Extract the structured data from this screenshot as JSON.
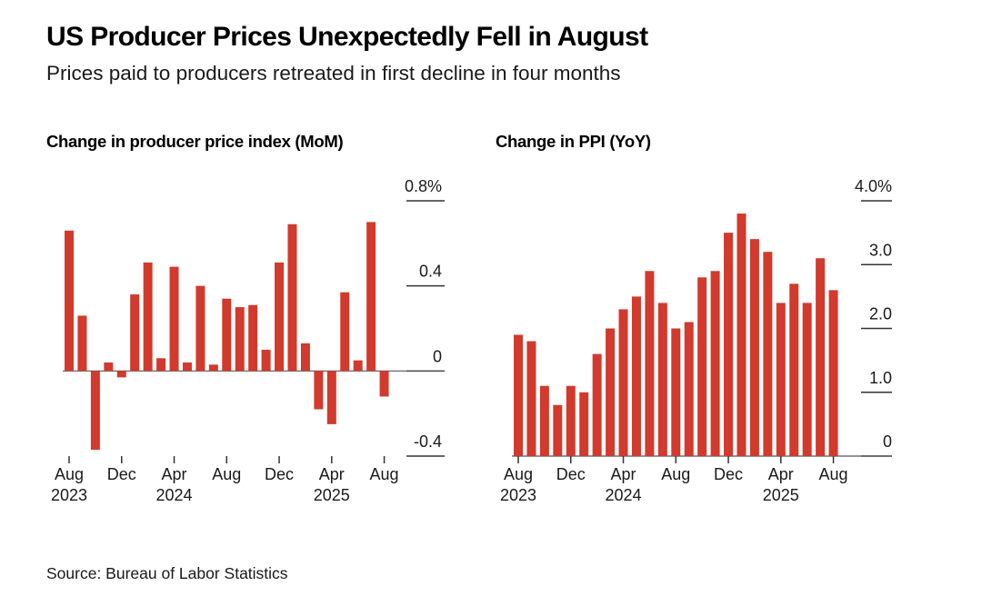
{
  "header": {
    "title": "US Producer Prices Unexpectedly Fell in August",
    "subtitle": "Prices paid to producers retreated in first decline in four months"
  },
  "footer": {
    "source": "Source: Bureau of Labor Statistics"
  },
  "colors": {
    "bar": "#d13a2c"
  },
  "chart_data": [
    {
      "type": "bar",
      "title": "Change in producer price index (MoM)",
      "ylabel": "",
      "ylim": [
        -0.4,
        0.8
      ],
      "y_ticks": [
        {
          "value": 0.8,
          "label": "0.8%"
        },
        {
          "value": 0.4,
          "label": "0.4"
        },
        {
          "value": 0,
          "label": "0"
        },
        {
          "value": -0.4,
          "label": "-0.4"
        }
      ],
      "x_ticks": [
        {
          "index": 0,
          "label": "Aug",
          "year": "2023"
        },
        {
          "index": 4,
          "label": "Dec",
          "year": ""
        },
        {
          "index": 8,
          "label": "Apr",
          "year": "2024"
        },
        {
          "index": 12,
          "label": "Aug",
          "year": ""
        },
        {
          "index": 16,
          "label": "Dec",
          "year": ""
        },
        {
          "index": 20,
          "label": "Apr",
          "year": "2025"
        },
        {
          "index": 24,
          "label": "Aug",
          "year": ""
        }
      ],
      "categories": [
        "2023-08",
        "2023-09",
        "2023-10",
        "2023-11",
        "2023-12",
        "2024-01",
        "2024-02",
        "2024-03",
        "2024-04",
        "2024-05",
        "2024-06",
        "2024-07",
        "2024-08",
        "2024-09",
        "2024-10",
        "2024-11",
        "2024-12",
        "2025-01",
        "2025-02",
        "2025-03",
        "2025-04",
        "2025-05",
        "2025-06",
        "2025-07",
        "2025-08"
      ],
      "values": [
        0.66,
        0.26,
        -0.37,
        0.04,
        -0.03,
        0.36,
        0.51,
        0.06,
        0.49,
        0.04,
        0.4,
        0.03,
        0.34,
        0.3,
        0.31,
        0.1,
        0.51,
        0.69,
        0.13,
        -0.18,
        -0.25,
        0.37,
        0.05,
        0.7,
        -0.12
      ]
    },
    {
      "type": "bar",
      "title": "Change in PPI (YoY)",
      "ylabel": "",
      "ylim": [
        0,
        4.0
      ],
      "y_ticks": [
        {
          "value": 4.0,
          "label": "4.0%"
        },
        {
          "value": 3.0,
          "label": "3.0"
        },
        {
          "value": 2.0,
          "label": "2.0"
        },
        {
          "value": 1.0,
          "label": "1.0"
        },
        {
          "value": 0,
          "label": "0"
        }
      ],
      "x_ticks": [
        {
          "index": 0,
          "label": "Aug",
          "year": "2023"
        },
        {
          "index": 4,
          "label": "Dec",
          "year": ""
        },
        {
          "index": 8,
          "label": "Apr",
          "year": "2024"
        },
        {
          "index": 12,
          "label": "Aug",
          "year": ""
        },
        {
          "index": 16,
          "label": "Dec",
          "year": ""
        },
        {
          "index": 20,
          "label": "Apr",
          "year": "2025"
        },
        {
          "index": 24,
          "label": "Aug",
          "year": ""
        }
      ],
      "categories": [
        "2023-08",
        "2023-09",
        "2023-10",
        "2023-11",
        "2023-12",
        "2024-01",
        "2024-02",
        "2024-03",
        "2024-04",
        "2024-05",
        "2024-06",
        "2024-07",
        "2024-08",
        "2024-09",
        "2024-10",
        "2024-11",
        "2024-12",
        "2025-01",
        "2025-02",
        "2025-03",
        "2025-04",
        "2025-05",
        "2025-06",
        "2025-07",
        "2025-08"
      ],
      "values": [
        1.9,
        1.8,
        1.1,
        0.8,
        1.1,
        1.0,
        1.6,
        2.0,
        2.3,
        2.5,
        2.9,
        2.4,
        2.0,
        2.1,
        2.8,
        2.9,
        3.5,
        3.8,
        3.4,
        3.2,
        2.4,
        2.7,
        2.4,
        3.1,
        2.6
      ]
    }
  ]
}
